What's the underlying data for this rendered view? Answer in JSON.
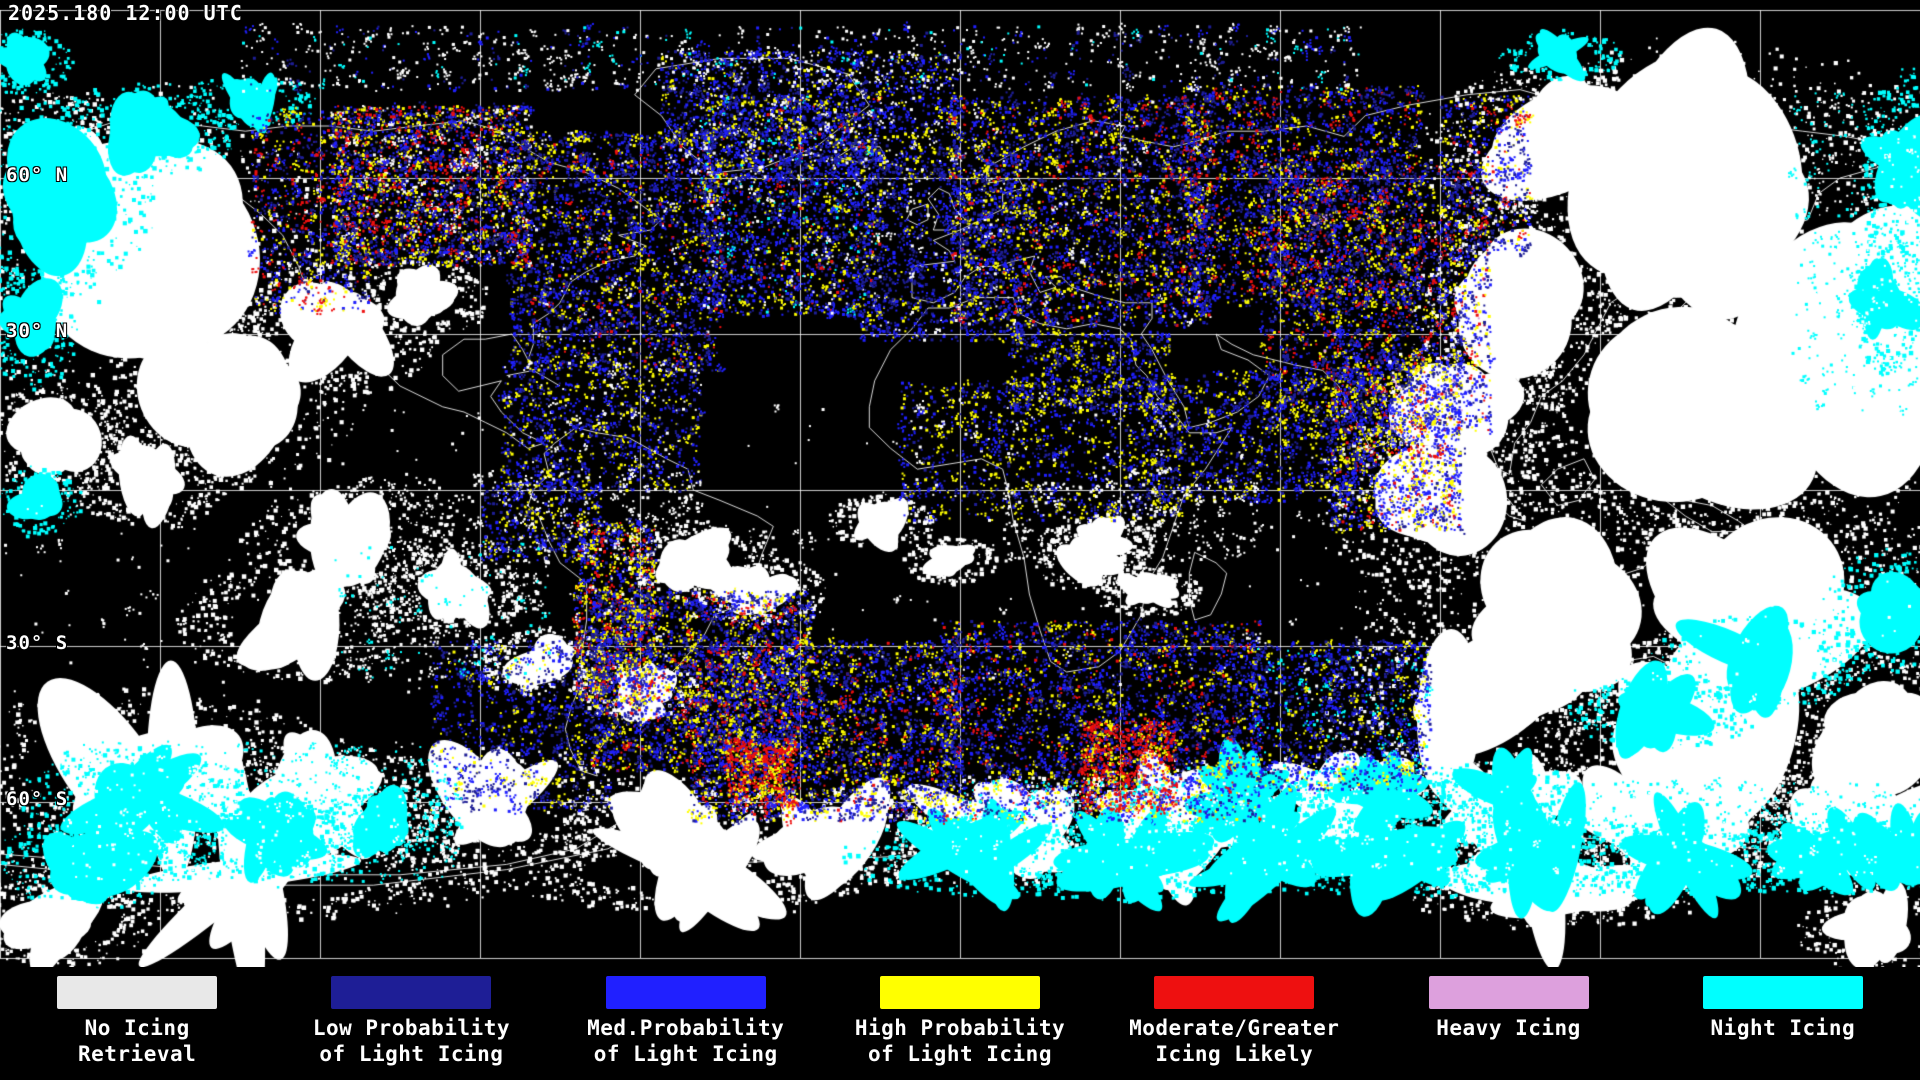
{
  "header": {
    "timestamp": "2025.180 12:00 UTC"
  },
  "colors": {
    "background": "#000000",
    "text": "#FFFFFF",
    "coastline": "#FFFFFF",
    "grid": "#FFFFFF"
  },
  "map": {
    "latitude_labels": [
      {
        "label": "60° N"
      },
      {
        "label": "30° N"
      },
      {
        "label": "30° S"
      },
      {
        "label": "60° S"
      }
    ]
  },
  "legend": {
    "items": [
      {
        "name": "no-icing-retrieval",
        "color": "#E8E8E8",
        "line1": "No Icing",
        "line2": "Retrieval"
      },
      {
        "name": "low-probability-light-icing",
        "color": "#1E1E96",
        "line1": "Low Probability",
        "line2": "of Light Icing"
      },
      {
        "name": "med-probability-light-icing",
        "color": "#2020FF",
        "line1": "Med.Probability",
        "line2": "of Light Icing"
      },
      {
        "name": "high-probability-light-icing",
        "color": "#FFFF00",
        "line1": "High Probability",
        "line2": "of Light Icing"
      },
      {
        "name": "moderate-greater-icing",
        "color": "#EE1010",
        "line1": "Moderate/Greater",
        "line2": "Icing Likely"
      },
      {
        "name": "heavy-icing",
        "color": "#DDA0DD",
        "line1": "Heavy Icing",
        "line2": ""
      },
      {
        "name": "night-icing",
        "color": "#00FFFF",
        "line1": "Night Icing",
        "line2": ""
      }
    ]
  }
}
